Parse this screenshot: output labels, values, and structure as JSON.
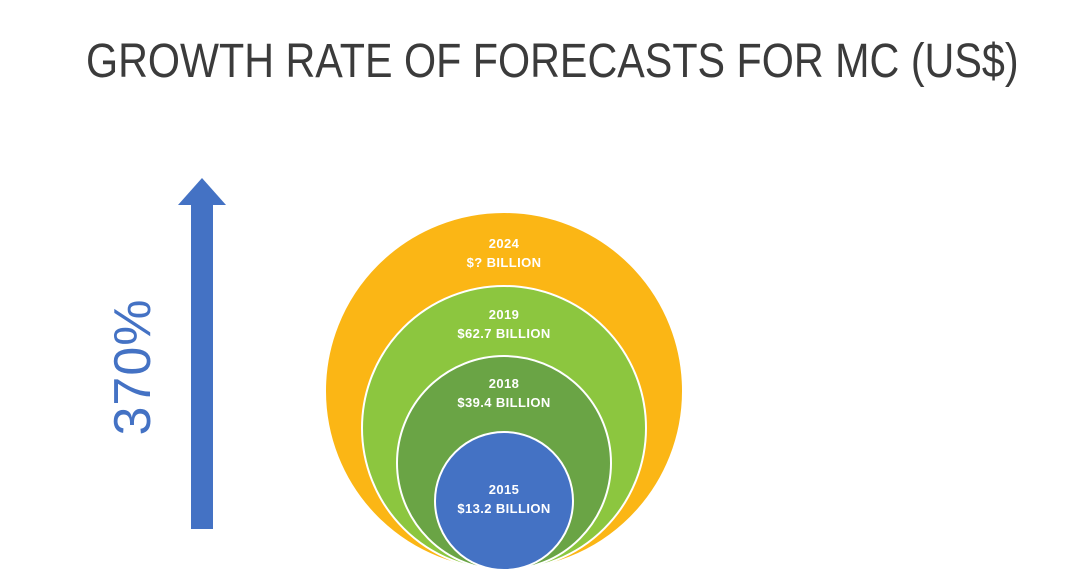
{
  "title": "GROWTH RATE OF FORECASTS FOR MC (US$)",
  "growth": {
    "label": "370%",
    "arrow_direction": "up",
    "color": "#4472C4"
  },
  "chart_data": {
    "type": "nested-circles",
    "title": "GROWTH RATE OF FORECASTS FOR MC (US$)",
    "unit": "US$ billion",
    "growth_label": "370%",
    "legend_position": "none",
    "grid": false,
    "series": [
      {
        "year": "2024",
        "value_label": "$? BILLION",
        "value": null,
        "color": "#FBB615"
      },
      {
        "year": "2019",
        "value_label": "$62.7 BILLION",
        "value": 62.7,
        "color": "#8CC63F"
      },
      {
        "year": "2018",
        "value_label": "$39.4 BILLION",
        "value": 39.4,
        "color": "#6AA445"
      },
      {
        "year": "2015",
        "value_label": "$13.2 BILLION",
        "value": 13.2,
        "color": "#4472C4"
      }
    ]
  }
}
